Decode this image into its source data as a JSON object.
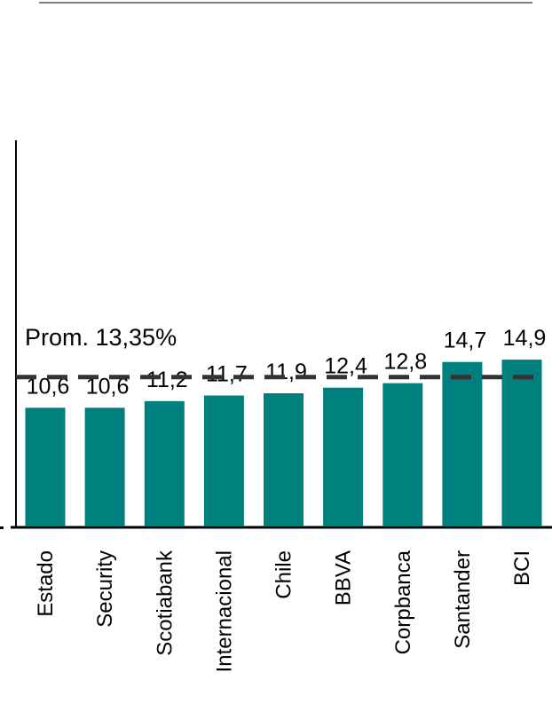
{
  "chart_data": {
    "type": "bar",
    "title": "",
    "xlabel": "",
    "ylabel": "",
    "categories": [
      "Estado",
      "Security",
      "Scotiabank",
      "Internacional",
      "Chile",
      "BBVA",
      "Corpbanca",
      "Santander",
      "BCI"
    ],
    "values": [
      10.6,
      10.6,
      11.2,
      11.7,
      11.9,
      12.4,
      12.8,
      14.7,
      14.9
    ],
    "value_labels": [
      "10,6",
      "10,6",
      "11,2",
      "11,7",
      "11,9",
      "12,4",
      "12,8",
      "14,7",
      "14,9"
    ],
    "average": 13.35,
    "average_label": "Prom. 13,35%",
    "ylim": [
      0,
      34.5
    ],
    "grid": false,
    "legend": "none",
    "bar_color": "#007F7F",
    "average_line_color": "#333333"
  }
}
